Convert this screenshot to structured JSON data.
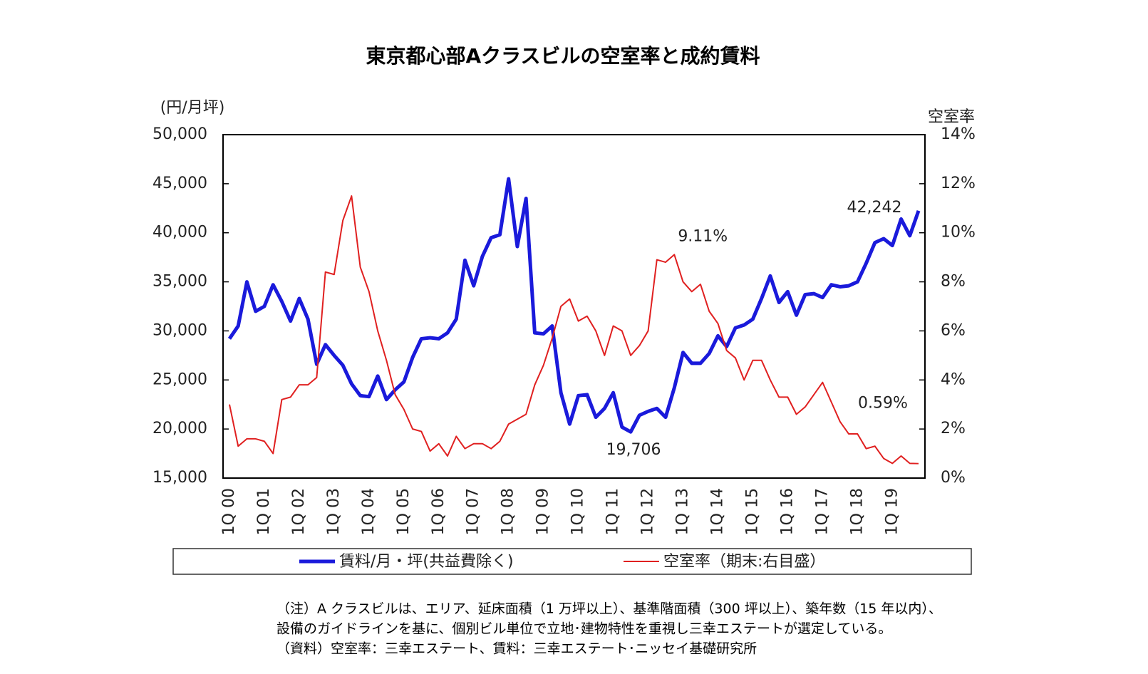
{
  "chart_data": {
    "type": "line",
    "title": "東京都心部Aクラスビルの空室率と成約賃料",
    "ylabel": "(円/月坪)",
    "y2label": "空室率",
    "categories": [
      "1Q 00",
      null,
      null,
      null,
      "1Q 01",
      null,
      null,
      null,
      "1Q 02",
      null,
      null,
      null,
      "1Q 03",
      null,
      null,
      null,
      "1Q 04",
      null,
      null,
      null,
      "1Q 05",
      null,
      null,
      null,
      "1Q 06",
      null,
      null,
      null,
      "1Q 07",
      null,
      null,
      null,
      "1Q 08",
      null,
      null,
      null,
      "1Q 09",
      null,
      null,
      null,
      "1Q 10",
      null,
      null,
      null,
      "1Q 11",
      null,
      null,
      null,
      "1Q 12",
      null,
      null,
      null,
      "1Q 13",
      null,
      null,
      null,
      "1Q 14",
      null,
      null,
      null,
      "1Q 15",
      null,
      null,
      null,
      "1Q 16",
      null,
      null,
      null,
      "1Q 17",
      null,
      null,
      null,
      "1Q 18",
      null,
      null,
      null,
      "1Q 19",
      null,
      null,
      null
    ],
    "series": [
      {
        "name": "賃料/月・坪(共益費除く)",
        "color": "#1a1adb",
        "width": 5,
        "values": [
          29200,
          30500,
          35000,
          32000,
          32500,
          34700,
          33000,
          31000,
          33300,
          31200,
          26600,
          28600,
          27500,
          26500,
          24600,
          23400,
          23300,
          25400,
          23000,
          24000,
          24800,
          27300,
          29200,
          29300,
          29200,
          29800,
          31200,
          37200,
          34600,
          37600,
          39500,
          39800,
          45500,
          38600,
          43500,
          29800,
          29700,
          30500,
          23700,
          20500,
          23400,
          23500,
          21200,
          22100,
          23700,
          20200,
          19706,
          21400,
          21800,
          22100,
          21200,
          24200,
          27800,
          26700,
          26700,
          27700,
          29500,
          28400,
          30300,
          30600,
          31200,
          33300,
          35600,
          32900,
          34000,
          31600,
          33700,
          33800,
          33400,
          34700,
          34500,
          34600,
          35000,
          36900,
          39000,
          39400,
          38700,
          41400,
          39700,
          42242
        ],
        "value_labels": [
          null,
          null,
          null,
          null,
          null,
          null,
          null,
          null,
          null,
          null,
          null,
          null,
          null,
          null,
          null,
          null,
          null,
          null,
          null,
          null,
          null,
          null,
          null,
          null,
          null,
          null,
          null,
          null,
          null,
          null,
          null,
          null,
          null,
          null,
          null,
          null,
          null,
          null,
          null,
          null,
          null,
          null,
          null,
          null,
          null,
          null,
          "19,706",
          null,
          null,
          null,
          null,
          null,
          null,
          null,
          null,
          null,
          null,
          null,
          null,
          null,
          null,
          null,
          null,
          null,
          null,
          null,
          null,
          null,
          null,
          null,
          null,
          null,
          null,
          null,
          null,
          null,
          null,
          null,
          null,
          "42,242"
        ]
      },
      {
        "name": "空室率（期末:右目盛）",
        "color": "#e02020",
        "width": 2,
        "axis": "y2",
        "values": [
          3.0,
          1.3,
          1.6,
          1.6,
          1.5,
          1.0,
          3.2,
          3.3,
          3.8,
          3.8,
          4.1,
          8.4,
          8.3,
          10.5,
          11.5,
          8.6,
          7.6,
          6.0,
          4.8,
          3.4,
          2.8,
          2.0,
          1.9,
          1.1,
          1.4,
          0.9,
          1.7,
          1.2,
          1.4,
          1.4,
          1.2,
          1.5,
          2.2,
          2.4,
          2.6,
          3.8,
          4.6,
          5.7,
          7.0,
          7.3,
          6.4,
          6.6,
          6.0,
          5.0,
          6.2,
          6.0,
          5.0,
          5.4,
          6.0,
          8.9,
          8.8,
          9.11,
          8.0,
          7.6,
          7.9,
          6.8,
          6.3,
          5.2,
          4.9,
          4.0,
          4.8,
          4.8,
          4.0,
          3.3,
          3.3,
          2.6,
          2.9,
          3.4,
          3.9,
          3.1,
          2.3,
          1.8,
          1.8,
          1.2,
          1.3,
          0.8,
          0.6,
          0.9,
          0.6,
          0.59
        ],
        "value_labels": [
          null,
          null,
          null,
          null,
          null,
          null,
          null,
          null,
          null,
          null,
          null,
          null,
          null,
          null,
          null,
          null,
          null,
          null,
          null,
          null,
          null,
          null,
          null,
          null,
          null,
          null,
          null,
          null,
          null,
          null,
          null,
          null,
          null,
          null,
          null,
          null,
          null,
          null,
          null,
          null,
          null,
          null,
          null,
          null,
          null,
          null,
          null,
          null,
          null,
          null,
          null,
          "9.11%",
          null,
          null,
          null,
          null,
          null,
          null,
          null,
          null,
          null,
          null,
          null,
          null,
          null,
          null,
          null,
          null,
          null,
          null,
          null,
          null,
          null,
          null,
          null,
          null,
          null,
          null,
          null,
          "0.59%"
        ]
      }
    ],
    "ylim": [
      15000,
      50000
    ],
    "yticks": [
      {
        "value": 15000,
        "label": "15,000"
      },
      {
        "value": 20000,
        "label": "20,000"
      },
      {
        "value": 25000,
        "label": "25,000"
      },
      {
        "value": 30000,
        "label": "30,000"
      },
      {
        "value": 35000,
        "label": "35,000"
      },
      {
        "value": 40000,
        "label": "40,000"
      },
      {
        "value": 45000,
        "label": "45,000"
      },
      {
        "value": 50000,
        "label": "50,000"
      }
    ],
    "y2lim": [
      0,
      14
    ],
    "y2ticks": [
      {
        "value": 0,
        "label": "0%"
      },
      {
        "value": 2,
        "label": "2%"
      },
      {
        "value": 4,
        "label": "4%"
      },
      {
        "value": 6,
        "label": "6%"
      },
      {
        "value": 8,
        "label": "8%"
      },
      {
        "value": 10,
        "label": "10%"
      },
      {
        "value": 12,
        "label": "12%"
      },
      {
        "value": 14,
        "label": "14%"
      }
    ],
    "legend": "bottom",
    "notes": [
      "（注）A クラスビルは、エリア、延床面積（1 万坪以上）、基準階面積（300 坪以上）、築年数（15 年以内）、",
      "設備のガイドラインを基に、個別ビル単位で立地･建物特性を重視し三幸エステートが選定している。",
      "（資料）空室率：三幸エステート、賃料：三幸エステート･ニッセイ基礎研究所"
    ]
  }
}
